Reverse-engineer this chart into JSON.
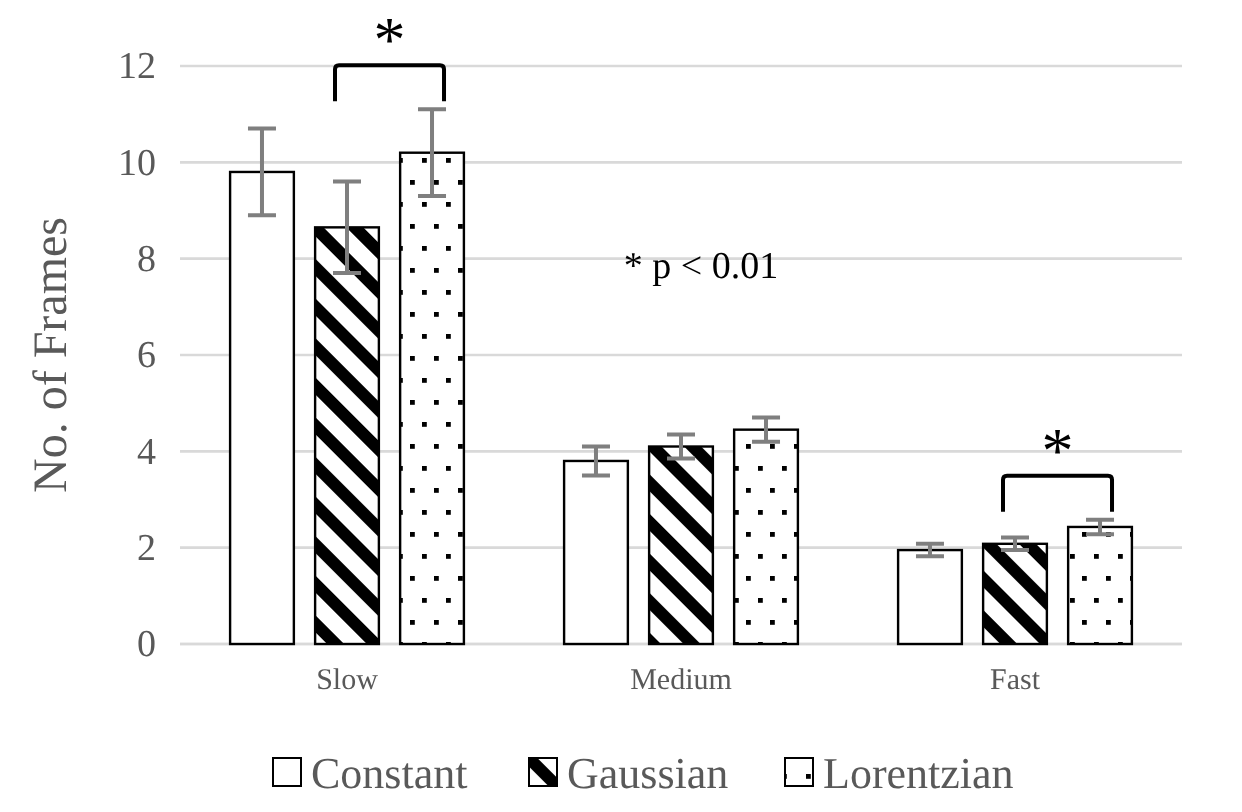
{
  "chart_data": {
    "type": "bar",
    "ylabel": "No. of Frames",
    "categories": [
      "Slow",
      "Medium",
      "Fast"
    ],
    "series": [
      {
        "name": "Constant",
        "color": "#ffffff",
        "values": [
          9.8,
          3.8,
          1.95
        ],
        "errors": [
          0.9,
          0.3,
          0.13
        ]
      },
      {
        "name": "Gaussian",
        "color": "#000000",
        "values": [
          8.65,
          4.1,
          2.08
        ],
        "errors": [
          0.95,
          0.25,
          0.13
        ]
      },
      {
        "name": "Lorentzian",
        "color": "#000000",
        "values": [
          10.2,
          4.45,
          2.43
        ],
        "errors": [
          0.9,
          0.25,
          0.15
        ]
      }
    ],
    "ylim": [
      0,
      12
    ],
    "yticks": [
      0,
      2,
      4,
      6,
      8,
      10,
      12
    ],
    "grid": "y",
    "legend": "bottom",
    "annotations": [
      "*",
      "*",
      "* p < 0.01"
    ]
  }
}
